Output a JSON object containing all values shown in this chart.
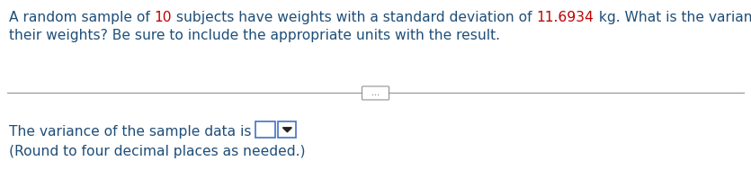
{
  "line1_seg1": "A random sample of ",
  "line1_seg2": "10",
  "line1_seg3": " subjects have weights with a standard deviation of ",
  "line1_seg4": "11.6934",
  "line1_seg5": " kg. What is the variance of",
  "line2": "their weights? Be sure to include the appropriate units with the result.",
  "main_color": "#1f4e79",
  "num_color": "#c00000",
  "bottom_color": "#1f4e79",
  "bottom_line1": "The variance of the sample data is ",
  "bottom_line2": "(Round to four decimal places as needed.)",
  "sep_color": "#909090",
  "bg_color": "#ffffff",
  "font_size": 11.2,
  "fig_width": 8.35,
  "fig_height": 1.99,
  "dpi": 100
}
